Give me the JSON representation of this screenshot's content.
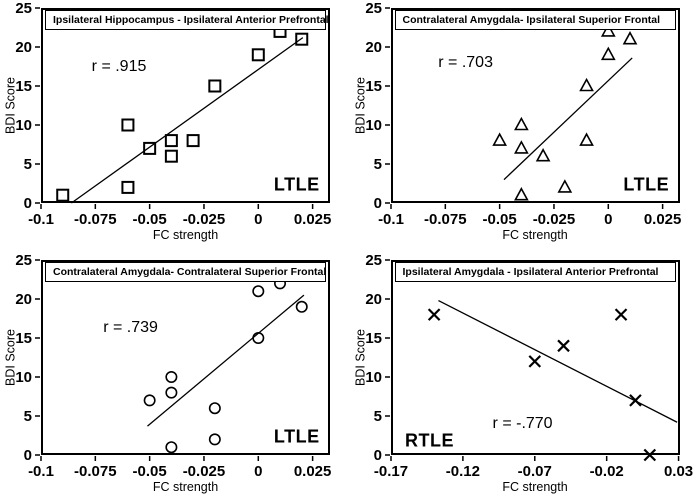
{
  "figure": {
    "background": "#ffffff",
    "ink": "#000000"
  },
  "chart_data": [
    {
      "type": "scatter",
      "title": "Ipsilateral Hippocampus - Ipsilateral Anterior Prefrontal",
      "xlabel": "FC strength",
      "ylabel": "BDI Score",
      "r_label": "r = .915",
      "group_label": "LTLE",
      "marker": "open-square",
      "xlim": [
        -0.1,
        0.033
      ],
      "ylim": [
        0,
        25
      ],
      "xticks": [
        -0.1,
        -0.075,
        -0.05,
        -0.025,
        0,
        0.025
      ],
      "xtick_labels": [
        "-0.1",
        "-0.075",
        "-0.05",
        "-0.025",
        "0",
        "0.025"
      ],
      "yticks": [
        0,
        5,
        10,
        15,
        20,
        25
      ],
      "ytick_labels": [
        "0",
        "5",
        "10",
        "15",
        "20",
        "25"
      ],
      "points": [
        [
          -0.09,
          1
        ],
        [
          -0.06,
          10
        ],
        [
          -0.06,
          2
        ],
        [
          -0.05,
          7
        ],
        [
          -0.04,
          8
        ],
        [
          -0.04,
          6
        ],
        [
          -0.03,
          8
        ],
        [
          -0.02,
          15
        ],
        [
          0,
          19
        ],
        [
          0.01,
          22
        ],
        [
          0.02,
          21
        ]
      ],
      "trend": [
        [
          -0.086,
          0
        ],
        [
          0.0205,
          21.2
        ]
      ],
      "r_label_pos": [
        0.27,
        0.3
      ],
      "group_label_pos": [
        0.885,
        0.91
      ],
      "grid": false
    },
    {
      "type": "scatter",
      "title": "Contralateral Amygdala- Ipsilateral Superior Frontal",
      "xlabel": "FC strength",
      "ylabel": "BDI Score",
      "r_label": "r = .703",
      "group_label": "LTLE",
      "marker": "open-triangle",
      "xlim": [
        -0.1,
        0.033
      ],
      "ylim": [
        0,
        25
      ],
      "xticks": [
        -0.1,
        -0.075,
        -0.05,
        -0.025,
        0,
        0.025
      ],
      "xtick_labels": [
        "-0.1",
        "-0.075",
        "-0.05",
        "-0.025",
        "0",
        "0.025"
      ],
      "yticks": [
        0,
        5,
        10,
        15,
        20,
        25
      ],
      "ytick_labels": [
        "0",
        "5",
        "10",
        "15",
        "20",
        "25"
      ],
      "points": [
        [
          -0.05,
          8
        ],
        [
          -0.04,
          10
        ],
        [
          -0.04,
          7
        ],
        [
          -0.04,
          1
        ],
        [
          -0.03,
          6
        ],
        [
          -0.02,
          2
        ],
        [
          -0.01,
          15
        ],
        [
          -0.01,
          8
        ],
        [
          0,
          22
        ],
        [
          0,
          19
        ],
        [
          0.01,
          21
        ]
      ],
      "trend": [
        [
          -0.048,
          3
        ],
        [
          0.011,
          18.6
        ]
      ],
      "r_label_pos": [
        0.26,
        0.28
      ],
      "group_label_pos": [
        0.885,
        0.91
      ],
      "grid": false
    },
    {
      "type": "scatter",
      "title": "Contralateral Amygdala- Contralateral Superior Frontal",
      "xlabel": "FC strength",
      "ylabel": "BDI Score",
      "r_label": "r = .739",
      "group_label": "LTLE",
      "marker": "open-circle",
      "xlim": [
        -0.1,
        0.033
      ],
      "ylim": [
        0,
        25
      ],
      "xticks": [
        -0.1,
        -0.075,
        -0.05,
        -0.025,
        0,
        0.025
      ],
      "xtick_labels": [
        "-0.1",
        "-0.075",
        "-0.05",
        "-0.025",
        "0",
        "0.025"
      ],
      "yticks": [
        0,
        5,
        10,
        15,
        20,
        25
      ],
      "ytick_labels": [
        "0",
        "5",
        "10",
        "15",
        "20",
        "25"
      ],
      "points": [
        [
          -0.05,
          7
        ],
        [
          -0.04,
          10
        ],
        [
          -0.04,
          8
        ],
        [
          -0.04,
          1
        ],
        [
          -0.02,
          6
        ],
        [
          -0.02,
          2
        ],
        [
          0,
          21
        ],
        [
          0,
          15
        ],
        [
          0.01,
          22
        ],
        [
          0.02,
          19
        ]
      ],
      "trend": [
        [
          -0.051,
          3.7
        ],
        [
          0.021,
          20.5
        ]
      ],
      "r_label_pos": [
        0.31,
        0.35
      ],
      "group_label_pos": [
        0.885,
        0.91
      ],
      "grid": false
    },
    {
      "type": "scatter",
      "title": "Ipsilateral Amygdala - Ipsilateral Anterior Prefrontal",
      "xlabel": "FC strength",
      "ylabel": "BDI Score",
      "r_label": "r = -.770",
      "group_label": "RTLE",
      "marker": "x-cross",
      "xlim": [
        -0.17,
        0.031
      ],
      "ylim": [
        0,
        25
      ],
      "xticks": [
        -0.17,
        -0.12,
        -0.07,
        -0.02,
        0.03
      ],
      "xtick_labels": [
        "-0.17",
        "-0.12",
        "-0.07",
        "-0.02",
        "0.03"
      ],
      "yticks": [
        0,
        5,
        10,
        15,
        20,
        25
      ],
      "ytick_labels": [
        "0",
        "5",
        "10",
        "15",
        "20",
        "25"
      ],
      "points": [
        [
          -0.14,
          18
        ],
        [
          -0.07,
          12
        ],
        [
          -0.05,
          14
        ],
        [
          -0.01,
          18
        ],
        [
          0,
          7
        ],
        [
          0.01,
          0
        ]
      ],
      "trend": [
        [
          -0.137,
          19.8
        ],
        [
          0.029,
          4.2
        ]
      ],
      "r_label_pos": [
        0.457,
        0.84
      ],
      "group_label_pos": [
        0.135,
        0.93
      ],
      "grid": false
    }
  ]
}
